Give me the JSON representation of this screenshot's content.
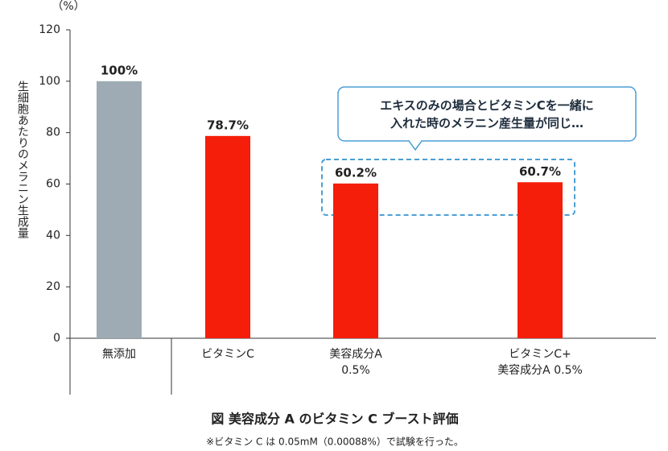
{
  "chart_data": {
    "type": "bar",
    "title": "図 美容成分 A のビタミン C ブースト評価",
    "footnote": "※ビタミン C は 0.05mM（0.00088%）で試験を行った。",
    "y_label": "生細胞あたりのメラニン生成量",
    "y_unit": "（%）",
    "annotation": "エキスのみの場合とビタミンCを一緒に\n入れた時のメラニン産生量が同じ…",
    "categories": [
      "無添加",
      "ビタミンC",
      "美容成分A\n0.5%",
      "ビタミンC+\n美容成分A 0.5%"
    ],
    "values": [
      100,
      78.7,
      60.2,
      60.7
    ],
    "value_labels": [
      "100%",
      "78.7%",
      "60.2%",
      "60.7%"
    ],
    "colors": [
      "#9eabb5",
      "#f41e0a",
      "#f41e0a",
      "#f41e0a"
    ],
    "ylim": [
      0,
      120
    ],
    "yticks": [
      0,
      20,
      40,
      60,
      80,
      100,
      120
    ],
    "grid": false
  }
}
